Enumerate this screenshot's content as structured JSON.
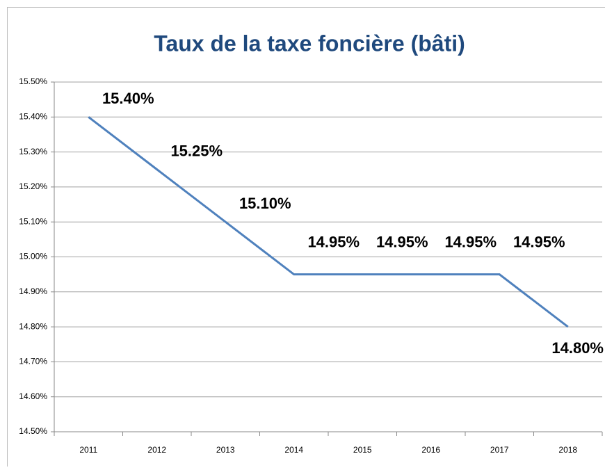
{
  "chart_data": {
    "type": "line",
    "title": "Taux de la taxe foncière (bâti)",
    "categories": [
      "2011",
      "2012",
      "2013",
      "2014",
      "2015",
      "2016",
      "2017",
      "2018"
    ],
    "series": [
      {
        "name": null,
        "color": "#4f81bd",
        "values": [
          15.4,
          15.25,
          15.1,
          14.95,
          14.95,
          14.95,
          14.95,
          14.8
        ],
        "value_labels": [
          "15.40%",
          "15.25%",
          "15.10%",
          "14.95%",
          "14.95%",
          "14.95%",
          "14.95%",
          "14.80%"
        ]
      }
    ],
    "ylim": [
      14.5,
      15.5
    ],
    "yticks": [
      {
        "value": 14.5,
        "label": "14.50%"
      },
      {
        "value": 14.6,
        "label": "14.60%"
      },
      {
        "value": 14.7,
        "label": "14.70%"
      },
      {
        "value": 14.8,
        "label": "14.80%"
      },
      {
        "value": 14.9,
        "label": "14.90%"
      },
      {
        "value": 15.0,
        "label": "15.00%"
      },
      {
        "value": 15.1,
        "label": "15.10%"
      },
      {
        "value": 15.2,
        "label": "15.20%"
      },
      {
        "value": 15.3,
        "label": "15.30%"
      },
      {
        "value": 15.4,
        "label": "15.40%"
      },
      {
        "value": 15.5,
        "label": "15.50%"
      }
    ],
    "grid": true
  }
}
